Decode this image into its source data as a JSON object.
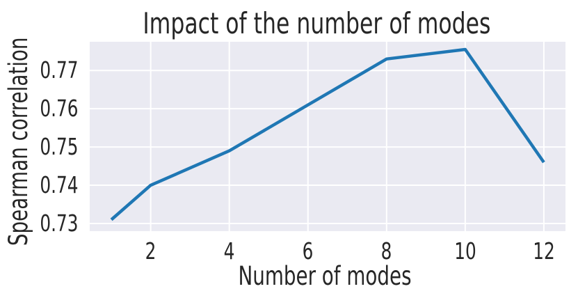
{
  "chart_data": {
    "type": "line",
    "title": "Impact of the number of modes",
    "xlabel": "Number of modes",
    "ylabel": "Spearman correlation",
    "x": [
      1,
      2,
      4,
      6,
      8,
      10,
      12
    ],
    "y": [
      0.731,
      0.74,
      0.749,
      0.761,
      0.773,
      0.7755,
      0.746
    ],
    "xlim": [
      0.45,
      12.55
    ],
    "ylim": [
      0.728,
      0.7775
    ],
    "xticks": [
      2,
      4,
      6,
      8,
      10,
      12
    ],
    "xtick_labels": [
      "2",
      "4",
      "6",
      "8",
      "10",
      "12"
    ],
    "yticks": [
      0.73,
      0.74,
      0.75,
      0.76,
      0.77
    ],
    "ytick_labels": [
      "0.73",
      "0.74",
      "0.75",
      "0.76",
      "0.77"
    ],
    "grid": true,
    "legend": "none",
    "line_color": "#1f77b4",
    "line_width": 4.5,
    "plot_bg": "#eaeaf2",
    "grid_color": "#ffffff",
    "text_color": "#262626"
  }
}
